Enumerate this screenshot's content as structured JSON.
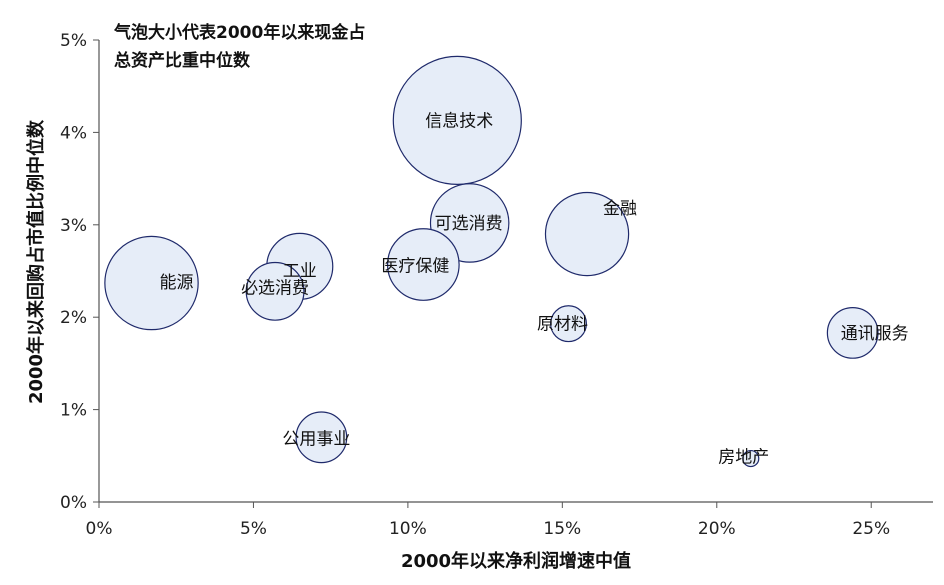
{
  "chart_data": {
    "type": "scatter",
    "annotation_lines": [
      "气泡大小代表2000年以来现金占",
      "总资产比重中位数"
    ],
    "xlabel": "2000年以来净利润增速中值",
    "ylabel": "2000年以来回购占市值比例中位数",
    "xlim": [
      0,
      0.27
    ],
    "ylim": [
      0,
      0.05
    ],
    "x_ticks": [
      "0%",
      "5%",
      "10%",
      "15%",
      "20%",
      "25%"
    ],
    "y_ticks": [
      "0%",
      "1%",
      "2%",
      "3%",
      "4%",
      "5%"
    ],
    "grid": false,
    "colors": {
      "bubble_fill": "#e6edf8",
      "bubble_stroke": "#1f2a6b",
      "axis": "#555555"
    },
    "points": [
      {
        "name": "能源",
        "x": 0.017,
        "y": 0.0237,
        "size": 0.34
      },
      {
        "name": "必选消费",
        "x": 0.057,
        "y": 0.0228,
        "size": 0.13
      },
      {
        "name": "工业",
        "x": 0.065,
        "y": 0.0255,
        "size": 0.17
      },
      {
        "name": "公用事业",
        "x": 0.072,
        "y": 0.007,
        "size": 0.1
      },
      {
        "name": "医疗保健",
        "x": 0.105,
        "y": 0.0257,
        "size": 0.2
      },
      {
        "name": "信息技术",
        "x": 0.116,
        "y": 0.0413,
        "size": 0.64
      },
      {
        "name": "可选消费",
        "x": 0.12,
        "y": 0.0302,
        "size": 0.24
      },
      {
        "name": "原材料",
        "x": 0.152,
        "y": 0.0193,
        "size": 0.05
      },
      {
        "name": "金融",
        "x": 0.158,
        "y": 0.029,
        "size": 0.27
      },
      {
        "name": "房地产",
        "x": 0.211,
        "y": 0.0047,
        "size": 0.01
      },
      {
        "name": "通讯服务",
        "x": 0.244,
        "y": 0.0183,
        "size": 0.1
      }
    ]
  }
}
